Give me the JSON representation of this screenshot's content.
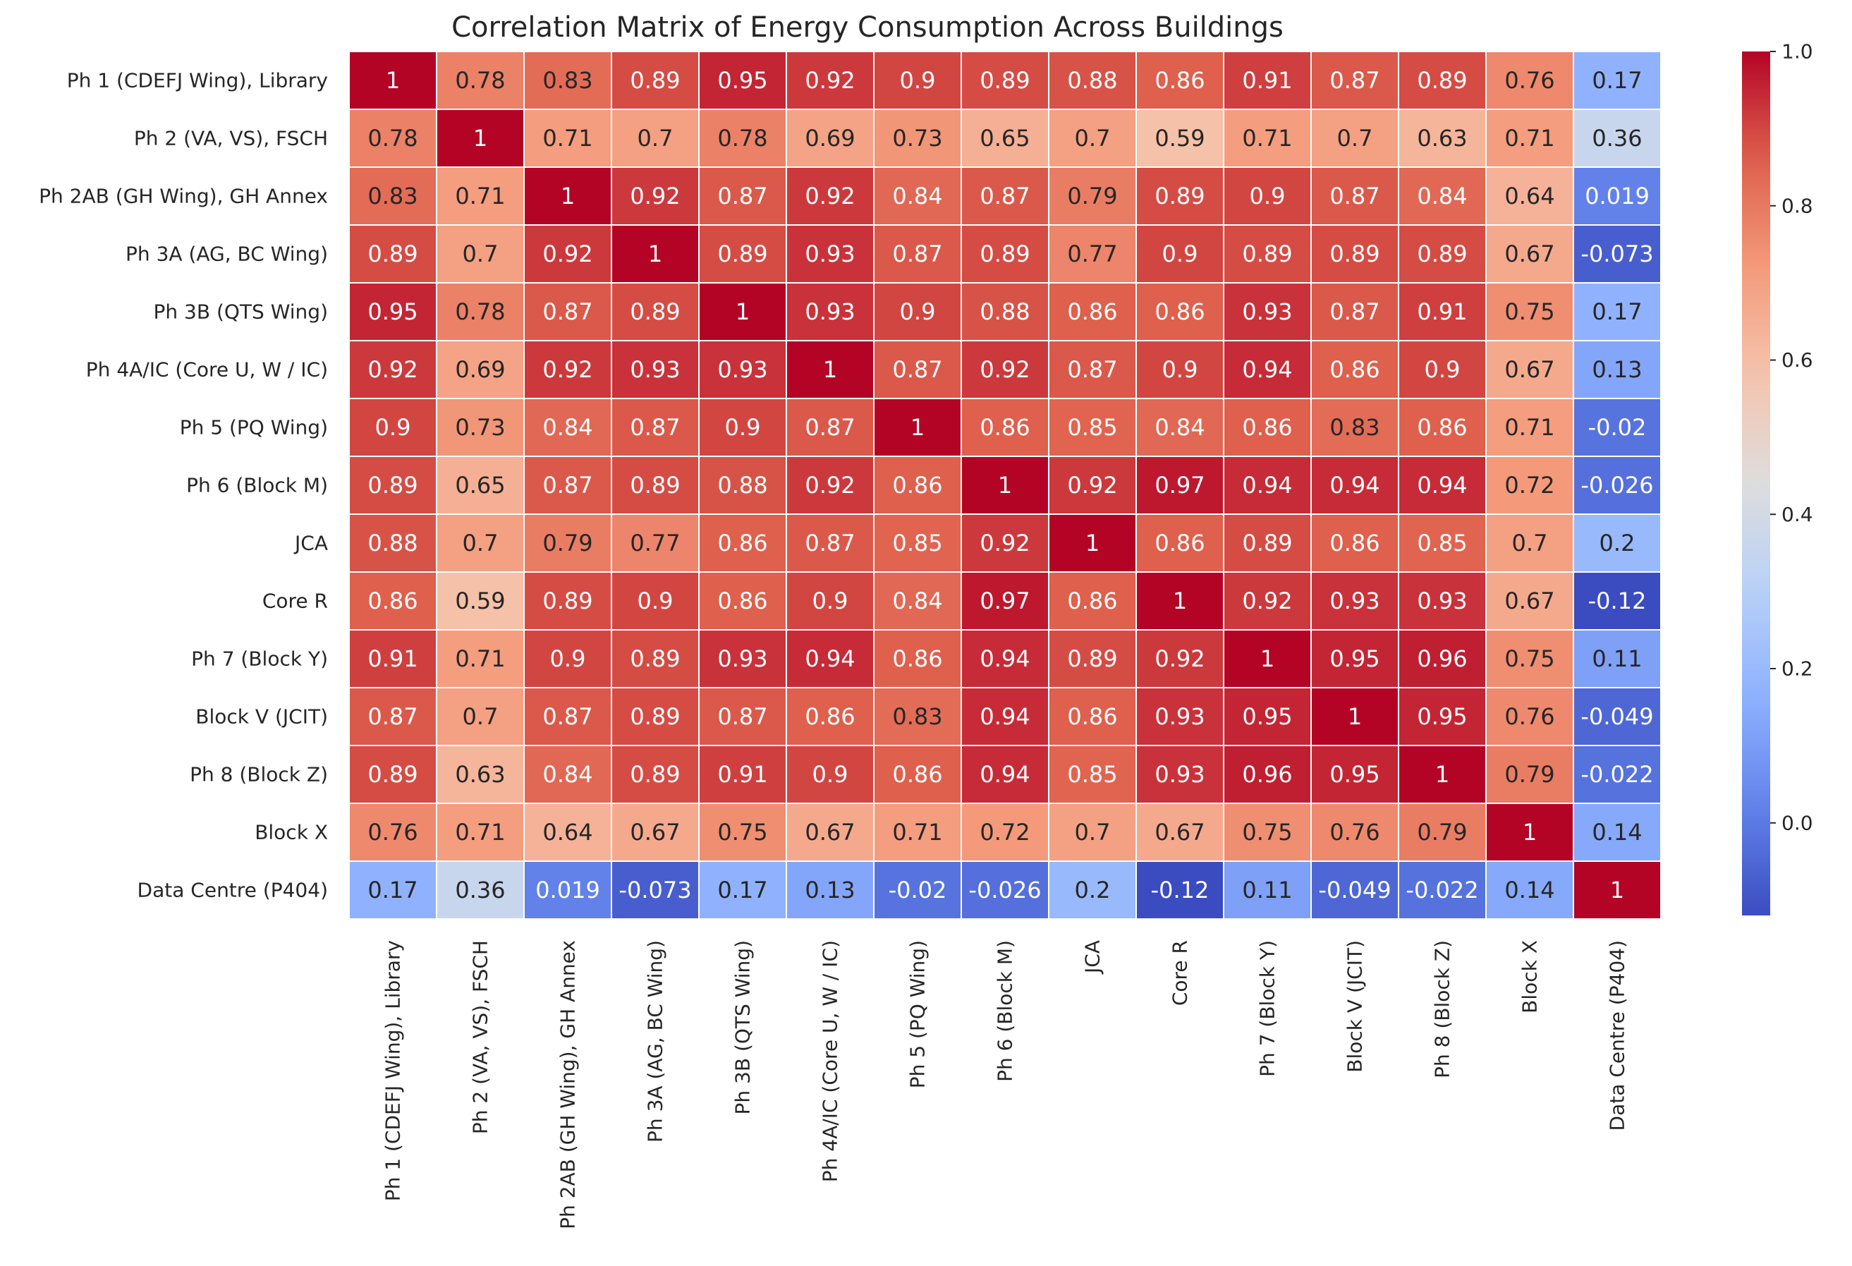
{
  "chart_data": {
    "type": "heatmap",
    "title": "Correlation Matrix of Energy Consumption Across Buildings",
    "colormap": "coolwarm",
    "row_labels": [
      "Ph 1 (CDEFJ Wing), Library",
      "Ph 2 (VA, VS), FSCH",
      "Ph 2AB (GH Wing), GH Annex",
      "Ph 3A (AG, BC Wing)",
      "Ph 3B (QTS Wing)",
      "Ph 4A/IC (Core U, W / IC)",
      "Ph 5 (PQ Wing)",
      "Ph 6 (Block M)",
      "JCA",
      "Core R",
      "Ph 7 (Block Y)",
      "Block V (JCIT)",
      "Ph 8 (Block Z)",
      "Block X",
      "Data Centre (P404)"
    ],
    "col_labels": [
      "Ph 1 (CDEFJ Wing), Library",
      "Ph 2 (VA, VS), FSCH",
      "Ph 2AB (GH Wing), GH Annex",
      "Ph 3A (AG, BC Wing)",
      "Ph 3B (QTS Wing)",
      "Ph 4A/IC (Core U, W / IC)",
      "Ph 5 (PQ Wing)",
      "Ph 6 (Block M)",
      "JCA",
      "Core R",
      "Ph 7 (Block Y)",
      "Block V (JCIT)",
      "Ph 8 (Block Z)",
      "Block X",
      "Data Centre (P404)"
    ],
    "values": [
      [
        1,
        0.78,
        0.83,
        0.89,
        0.95,
        0.92,
        0.9,
        0.89,
        0.88,
        0.86,
        0.91,
        0.87,
        0.89,
        0.76,
        0.17
      ],
      [
        0.78,
        1,
        0.71,
        0.7,
        0.78,
        0.69,
        0.73,
        0.65,
        0.7,
        0.59,
        0.71,
        0.7,
        0.63,
        0.71,
        0.36
      ],
      [
        0.83,
        0.71,
        1,
        0.92,
        0.87,
        0.92,
        0.84,
        0.87,
        0.79,
        0.89,
        0.9,
        0.87,
        0.84,
        0.64,
        0.019
      ],
      [
        0.89,
        0.7,
        0.92,
        1,
        0.89,
        0.93,
        0.87,
        0.89,
        0.77,
        0.9,
        0.89,
        0.89,
        0.89,
        0.67,
        -0.073
      ],
      [
        0.95,
        0.78,
        0.87,
        0.89,
        1,
        0.93,
        0.9,
        0.88,
        0.86,
        0.86,
        0.93,
        0.87,
        0.91,
        0.75,
        0.17
      ],
      [
        0.92,
        0.69,
        0.92,
        0.93,
        0.93,
        1,
        0.87,
        0.92,
        0.87,
        0.9,
        0.94,
        0.86,
        0.9,
        0.67,
        0.13
      ],
      [
        0.9,
        0.73,
        0.84,
        0.87,
        0.9,
        0.87,
        1,
        0.86,
        0.85,
        0.84,
        0.86,
        0.83,
        0.86,
        0.71,
        -0.02
      ],
      [
        0.89,
        0.65,
        0.87,
        0.89,
        0.88,
        0.92,
        0.86,
        1,
        0.92,
        0.97,
        0.94,
        0.94,
        0.94,
        0.72,
        -0.026
      ],
      [
        0.88,
        0.7,
        0.79,
        0.77,
        0.86,
        0.87,
        0.85,
        0.92,
        1,
        0.86,
        0.89,
        0.86,
        0.85,
        0.7,
        0.2
      ],
      [
        0.86,
        0.59,
        0.89,
        0.9,
        0.86,
        0.9,
        0.84,
        0.97,
        0.86,
        1,
        0.92,
        0.93,
        0.93,
        0.67,
        -0.12
      ],
      [
        0.91,
        0.71,
        0.9,
        0.89,
        0.93,
        0.94,
        0.86,
        0.94,
        0.89,
        0.92,
        1,
        0.95,
        0.96,
        0.75,
        0.11
      ],
      [
        0.87,
        0.7,
        0.87,
        0.89,
        0.87,
        0.86,
        0.83,
        0.94,
        0.86,
        0.93,
        0.95,
        1,
        0.95,
        0.76,
        -0.049
      ],
      [
        0.89,
        0.63,
        0.84,
        0.89,
        0.91,
        0.9,
        0.86,
        0.94,
        0.85,
        0.93,
        0.96,
        0.95,
        1,
        0.79,
        -0.022
      ],
      [
        0.76,
        0.71,
        0.64,
        0.67,
        0.75,
        0.67,
        0.71,
        0.72,
        0.7,
        0.67,
        0.75,
        0.76,
        0.79,
        1,
        0.14
      ],
      [
        0.17,
        0.36,
        0.019,
        -0.073,
        0.17,
        0.13,
        -0.02,
        -0.026,
        0.2,
        -0.12,
        0.11,
        -0.049,
        -0.022,
        0.14,
        1
      ]
    ],
    "value_range": [
      -0.12,
      1.0
    ],
    "colorbar": {
      "ticks": [
        0.0,
        0.2,
        0.4,
        0.6,
        0.8,
        1.0
      ],
      "tick_labels": [
        "0.0",
        "0.2",
        "0.4",
        "0.6",
        "0.8",
        "1.0"
      ]
    },
    "annotated": true,
    "grid": false
  }
}
